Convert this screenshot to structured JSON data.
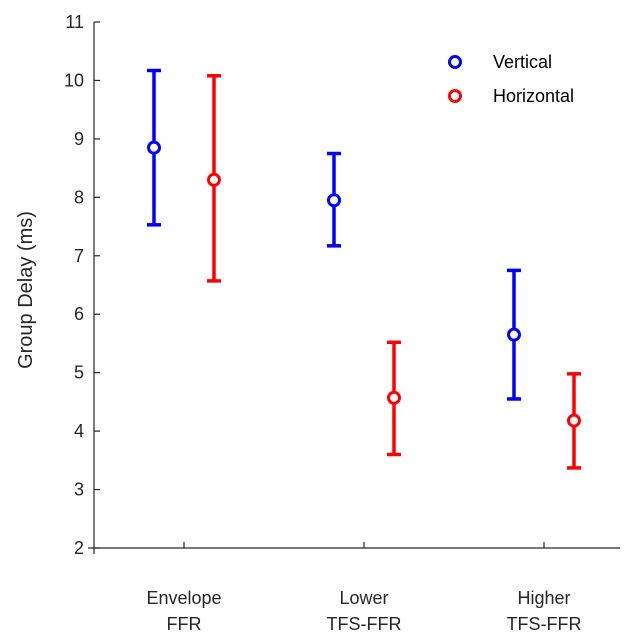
{
  "chart_data": {
    "type": "scatter",
    "ylabel": "Group Delay (ms)",
    "ylim": [
      2,
      11
    ],
    "yticks": [
      2,
      3,
      4,
      5,
      6,
      7,
      8,
      9,
      10,
      11
    ],
    "categories": [
      [
        "Envelope",
        "FFR"
      ],
      [
        "Lower",
        "TFS-FFR"
      ],
      [
        "Higher",
        "TFS-FFR"
      ]
    ],
    "legend_position": "top-right",
    "grid": false,
    "series": [
      {
        "name": "Vertical",
        "color": "#0000ff",
        "values": [
          8.85,
          7.95,
          5.65
        ],
        "lower": [
          7.53,
          7.17,
          4.55
        ],
        "upper": [
          10.17,
          8.75,
          6.75
        ]
      },
      {
        "name": "Horizontal",
        "color": "#ff0000",
        "values": [
          8.3,
          4.57,
          4.18
        ],
        "lower": [
          6.57,
          3.6,
          3.37
        ],
        "upper": [
          10.08,
          5.52,
          4.98
        ]
      }
    ]
  }
}
